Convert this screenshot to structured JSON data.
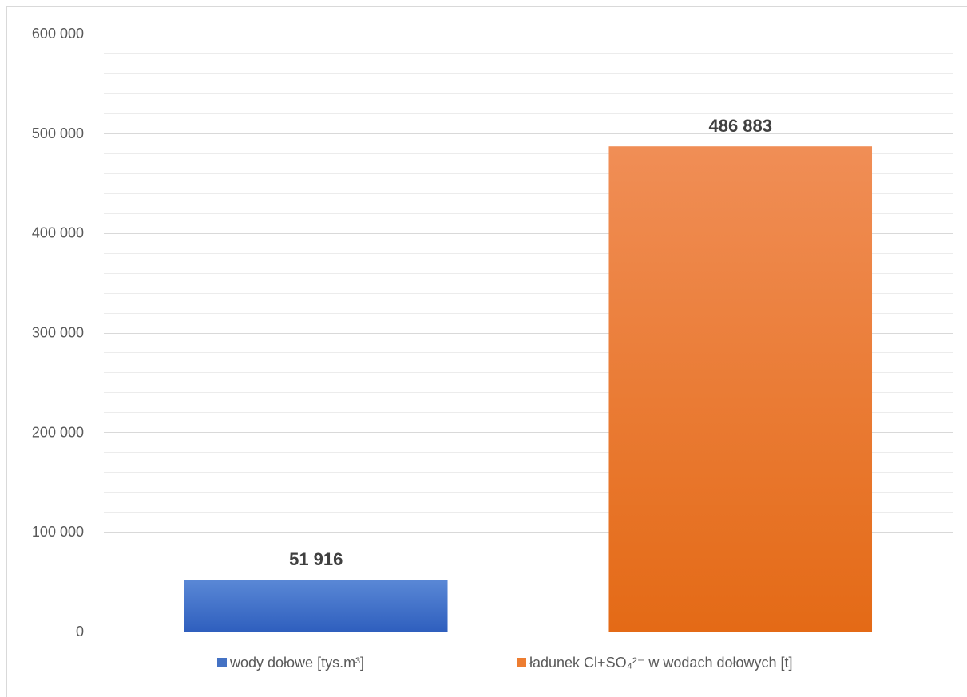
{
  "chart_data": {
    "type": "bar",
    "categories": [
      "wody dołowe [tys.m³]",
      "ładunek Cl+SO₄²⁻ w wodach dołowych [t]"
    ],
    "values": [
      51916,
      486883
    ],
    "value_labels": [
      "51 916",
      "486 883"
    ],
    "colors": [
      "#4472c4",
      "#ed7d31"
    ],
    "ylim": [
      0,
      600000
    ],
    "y_ticks": [
      0,
      100000,
      200000,
      300000,
      400000,
      500000,
      600000
    ],
    "y_tick_labels": [
      "0",
      "100 000",
      "200 000",
      "300 000",
      "400 000",
      "500 000",
      "600 000"
    ],
    "minor_gridlines": true,
    "legend_position": "bottom",
    "legend": [
      {
        "label": "wody dołowe [tys.m³]",
        "color": "#4472c4"
      },
      {
        "label": "ładunek Cl+SO₄²⁻ w wodach dołowych [t]",
        "color": "#ed7d31"
      }
    ]
  }
}
